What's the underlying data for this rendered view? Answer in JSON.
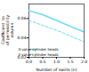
{
  "chart_data": {
    "type": "line",
    "title": "",
    "xlabel": "Number of swirls (n)",
    "ylabel": "Coefficient  to\nof permeability\ncolumn",
    "x": [
      0,
      0.5,
      1.0,
      1.5,
      2.0
    ],
    "series": [
      {
        "name": "4-valve cylinder heads",
        "color": "#66ddee",
        "line_style": "solid",
        "values": [
          0.068,
          0.064,
          0.058,
          0.052,
          0.046
        ]
      },
      {
        "name": "2-valve cylinder heads",
        "color": "#66ddee",
        "line_style": "dashed",
        "values": [
          0.058,
          0.053,
          0.048,
          0.042,
          0.036
        ]
      }
    ],
    "xlim": [
      0,
      2.0
    ],
    "ylim": [
      0.02,
      0.075
    ],
    "xticks": [
      {
        "value": 0,
        "label": "0.0"
      },
      0.5,
      {
        "value": 1.0,
        "label": "1.0"
      },
      1.5,
      {
        "value": 2.0,
        "label": "2.0"
      }
    ],
    "yticks": [
      0.02,
      0.04,
      0.06
    ],
    "legend": "lower left",
    "grid": false
  }
}
